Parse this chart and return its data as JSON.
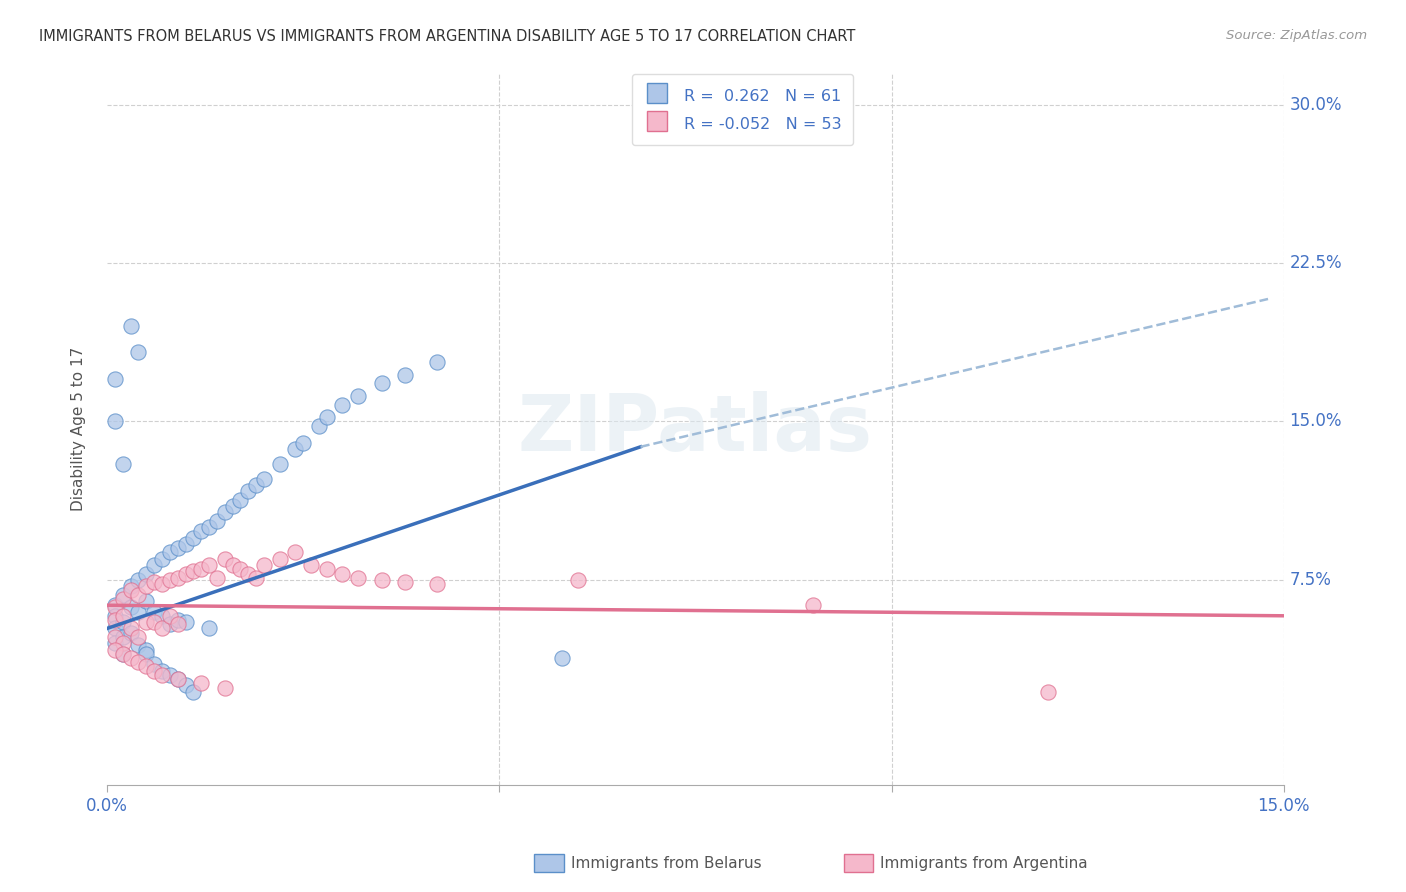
{
  "title": "IMMIGRANTS FROM BELARUS VS IMMIGRANTS FROM ARGENTINA DISABILITY AGE 5 TO 17 CORRELATION CHART",
  "source": "Source: ZipAtlas.com",
  "ylabel": "Disability Age 5 to 17",
  "xlim": [
    0.0,
    0.15
  ],
  "ylim": [
    -0.022,
    0.315
  ],
  "belarus_color": "#aec6e8",
  "belarus_edge_color": "#5b8fc9",
  "argentina_color": "#f5b8cb",
  "argentina_edge_color": "#e07090",
  "belarus_line_color": "#3a6fba",
  "argentina_line_color": "#e07090",
  "dashed_line_color": "#a0bcd8",
  "grid_color": "#d0d0d0",
  "right_axis_color": "#4472c4",
  "legend_r_belarus": "0.262",
  "legend_n_belarus": "61",
  "legend_r_argentina": "-0.052",
  "legend_n_argentina": "53",
  "watermark_text": "ZIPatlas",
  "watermark_color": "#dde8f0",
  "title_color": "#333333",
  "axis_label_color": "#555555",
  "tick_label_color": "#4472c4",
  "right_yticks": [
    0.075,
    0.15,
    0.225,
    0.3
  ],
  "right_ytick_labels": [
    "7.5%",
    "15.0%",
    "22.5%",
    "30.0%"
  ],
  "bottom_legend_labels": [
    "Immigrants from Belarus",
    "Immigrants from Argentina"
  ],
  "belarus_x": [
    0.001,
    0.001,
    0.001,
    0.001,
    0.002,
    0.002,
    0.002,
    0.002,
    0.003,
    0.003,
    0.003,
    0.004,
    0.004,
    0.004,
    0.005,
    0.005,
    0.005,
    0.006,
    0.006,
    0.007,
    0.007,
    0.008,
    0.008,
    0.009,
    0.009,
    0.01,
    0.01,
    0.011,
    0.012,
    0.013,
    0.013,
    0.014,
    0.015,
    0.016,
    0.017,
    0.018,
    0.019,
    0.02,
    0.022,
    0.024,
    0.025,
    0.027,
    0.028,
    0.03,
    0.032,
    0.035,
    0.038,
    0.042,
    0.001,
    0.001,
    0.002,
    0.003,
    0.004,
    0.005,
    0.006,
    0.007,
    0.008,
    0.009,
    0.01,
    0.011,
    0.058
  ],
  "belarus_y": [
    0.063,
    0.058,
    0.052,
    0.045,
    0.068,
    0.055,
    0.048,
    0.04,
    0.072,
    0.062,
    0.05,
    0.075,
    0.06,
    0.044,
    0.078,
    0.065,
    0.042,
    0.082,
    0.06,
    0.085,
    0.058,
    0.088,
    0.054,
    0.09,
    0.056,
    0.092,
    0.055,
    0.095,
    0.098,
    0.1,
    0.052,
    0.103,
    0.107,
    0.11,
    0.113,
    0.117,
    0.12,
    0.123,
    0.13,
    0.137,
    0.14,
    0.148,
    0.152,
    0.158,
    0.162,
    0.168,
    0.172,
    0.178,
    0.17,
    0.15,
    0.13,
    0.195,
    0.183,
    0.04,
    0.035,
    0.032,
    0.03,
    0.028,
    0.025,
    0.022,
    0.038
  ],
  "argentina_x": [
    0.001,
    0.001,
    0.001,
    0.002,
    0.002,
    0.002,
    0.003,
    0.003,
    0.004,
    0.004,
    0.005,
    0.005,
    0.006,
    0.006,
    0.007,
    0.007,
    0.008,
    0.008,
    0.009,
    0.009,
    0.01,
    0.011,
    0.012,
    0.013,
    0.014,
    0.015,
    0.016,
    0.017,
    0.018,
    0.019,
    0.02,
    0.022,
    0.024,
    0.026,
    0.028,
    0.03,
    0.032,
    0.035,
    0.038,
    0.042,
    0.001,
    0.002,
    0.003,
    0.004,
    0.005,
    0.006,
    0.007,
    0.009,
    0.012,
    0.015,
    0.06,
    0.09,
    0.12
  ],
  "argentina_y": [
    0.062,
    0.056,
    0.048,
    0.066,
    0.058,
    0.045,
    0.07,
    0.052,
    0.068,
    0.048,
    0.072,
    0.055,
    0.074,
    0.055,
    0.073,
    0.052,
    0.075,
    0.058,
    0.076,
    0.054,
    0.078,
    0.079,
    0.08,
    0.082,
    0.076,
    0.085,
    0.082,
    0.08,
    0.078,
    0.076,
    0.082,
    0.085,
    0.088,
    0.082,
    0.08,
    0.078,
    0.076,
    0.075,
    0.074,
    0.073,
    0.042,
    0.04,
    0.038,
    0.036,
    0.034,
    0.032,
    0.03,
    0.028,
    0.026,
    0.024,
    0.075,
    0.063,
    0.022
  ],
  "belarus_line_x0": 0.0,
  "belarus_line_y0": 0.052,
  "belarus_line_x1": 0.068,
  "belarus_line_y1": 0.138,
  "dashed_line_x0": 0.068,
  "dashed_line_y0": 0.138,
  "dashed_line_x1": 0.148,
  "dashed_line_y1": 0.208,
  "argentina_line_x0": 0.0,
  "argentina_line_y0": 0.063,
  "argentina_line_x1": 0.15,
  "argentina_line_y1": 0.058
}
